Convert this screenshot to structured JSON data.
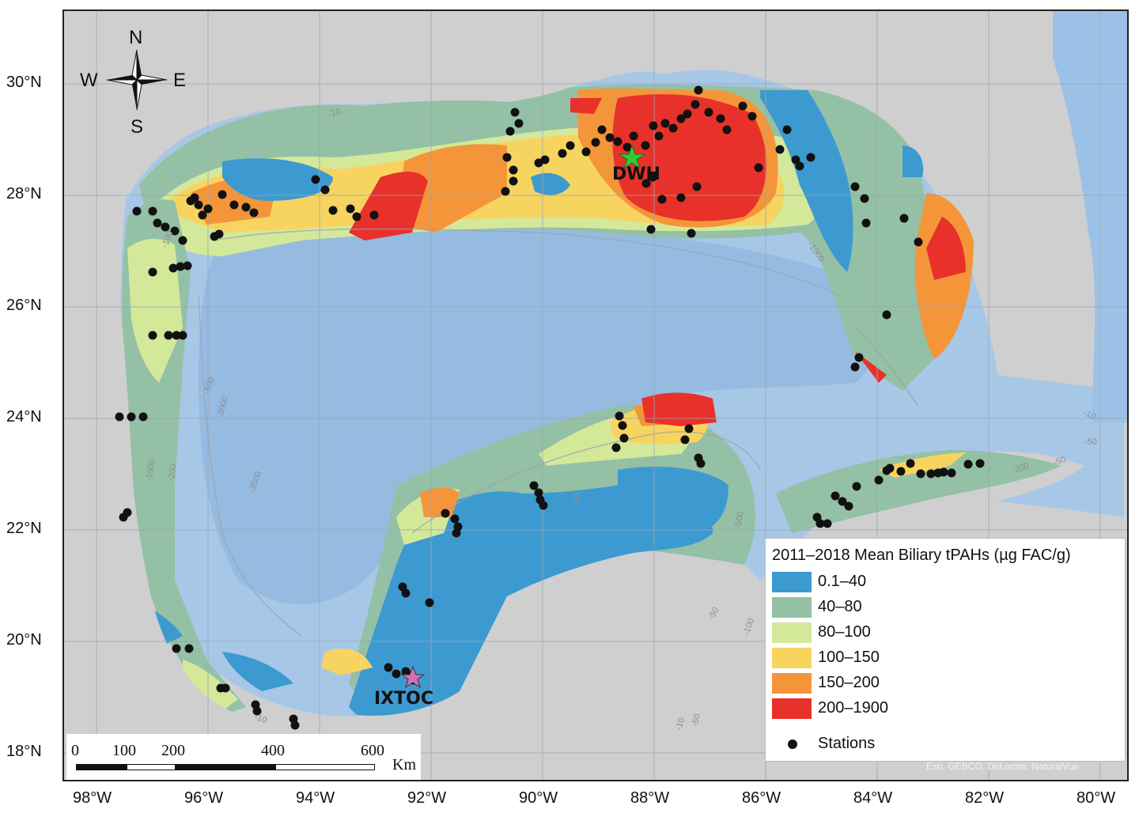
{
  "map": {
    "legend": {
      "title": "2011–2018 Mean Biliary tPAHs (µg FAC/g)",
      "classes": [
        {
          "label": "0.1–40",
          "color": "#3d9ad1"
        },
        {
          "label": "40–80",
          "color": "#94c0a5"
        },
        {
          "label": "80–100",
          "color": "#d4e89a"
        },
        {
          "label": "100–150",
          "color": "#f7d460"
        },
        {
          "label": "150–200",
          "color": "#f4953a"
        },
        {
          "label": "200–1900",
          "color": "#e8312a"
        }
      ],
      "stations_label": "Stations"
    },
    "latitude_labels": [
      "30°N",
      "28°N",
      "26°N",
      "24°N",
      "22°N",
      "20°N",
      "18°N"
    ],
    "longitude_labels": [
      "98°W",
      "96°W",
      "94°W",
      "92°W",
      "90°W",
      "88°W",
      "86°W",
      "84°W",
      "82°W",
      "80°W"
    ],
    "compass": {
      "north": "N",
      "south": "S",
      "east": "E",
      "west": "W"
    },
    "sites": {
      "dwh": "DWH",
      "ixtoc": "IXTOC"
    },
    "scale_bar": {
      "ticks": [
        "0",
        "100",
        "200",
        "400",
        "600"
      ],
      "unit": "Km"
    },
    "contour_labels": [
      "-10",
      "-100",
      "-1000",
      "-500",
      "-3000",
      "-1500",
      "-200",
      "-3500",
      "-50",
      "-500",
      "-50",
      "-100",
      "-10",
      "-50",
      "-50",
      "-10",
      "-200",
      "-10",
      "-50"
    ],
    "attribution": "Esri, GEBCO, DeLorme, NaturalVue",
    "colors": {
      "land": "#cfcfcf",
      "ocean": "#a7c7e7",
      "shelf": "#b9d6f0",
      "deep": "#8db4de",
      "station": "#111111",
      "dwh_star": "#35c93a",
      "ixtoc_star": "#d36fb6"
    }
  }
}
